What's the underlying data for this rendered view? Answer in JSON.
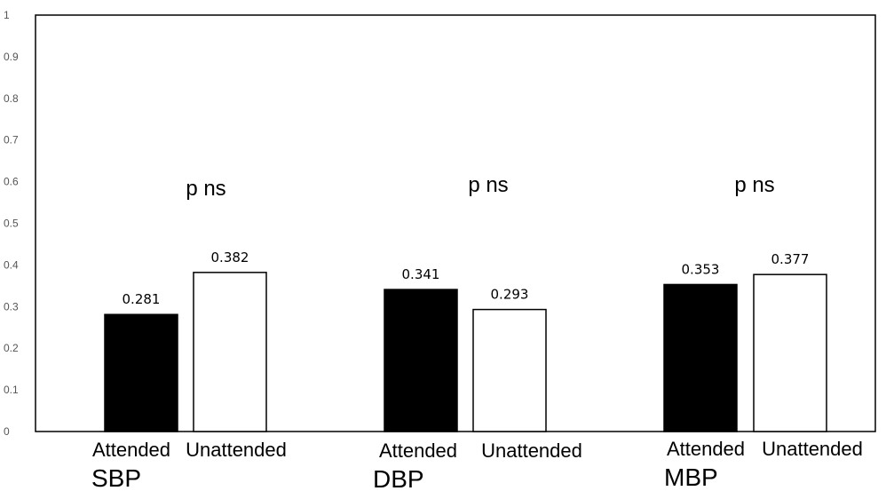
{
  "chart_data": {
    "type": "bar",
    "ylim": [
      0,
      1
    ],
    "yticks": [
      "0",
      "0.1",
      "0.2",
      "0.3",
      "0.4",
      "0.5",
      "0.6",
      "0.7",
      "0.8",
      "0.9",
      "1"
    ],
    "groups": [
      {
        "name": "SBP",
        "significance": "p  ns",
        "bars": [
          {
            "label": "Attended",
            "value": 0.281,
            "value_label": "0.281",
            "fill": "#000000"
          },
          {
            "label": "Unattended",
            "value": 0.382,
            "value_label": "0.382",
            "fill": "#ffffff"
          }
        ]
      },
      {
        "name": "DBP",
        "significance": "p  ns",
        "bars": [
          {
            "label": "Attended",
            "value": 0.341,
            "value_label": "0.341",
            "fill": "#000000"
          },
          {
            "label": "Unattended",
            "value": 0.293,
            "value_label": "0.293",
            "fill": "#ffffff"
          }
        ]
      },
      {
        "name": "MBP",
        "significance": "p  ns",
        "bars": [
          {
            "label": "Attended",
            "value": 0.353,
            "value_label": "0.353",
            "fill": "#000000"
          },
          {
            "label": "Unattended",
            "value": 0.377,
            "value_label": "0.377",
            "fill": "#ffffff"
          }
        ]
      }
    ],
    "grid": false,
    "legend": "none"
  }
}
